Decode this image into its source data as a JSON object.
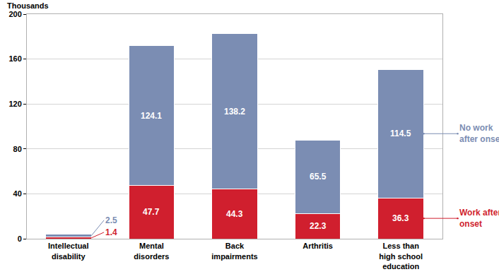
{
  "chart_data": {
    "type": "bar",
    "stacked": true,
    "y_label": "Thousands",
    "categories": [
      "Intellectual disability",
      "Mental disorders",
      "Back impairments",
      "Arthritis",
      "Less than high school education"
    ],
    "series": [
      {
        "name": "Work after onset",
        "color": "#d01f2e",
        "values": [
          1.4,
          47.7,
          44.3,
          22.3,
          36.3
        ]
      },
      {
        "name": "No work after onset",
        "color": "#7b8db3",
        "values": [
          2.5,
          124.1,
          138.2,
          65.5,
          114.5
        ]
      }
    ],
    "ylim": [
      0,
      200
    ],
    "yticks": [
      0,
      40,
      80,
      120,
      160,
      200
    ],
    "grid": true,
    "data_labels": true
  }
}
